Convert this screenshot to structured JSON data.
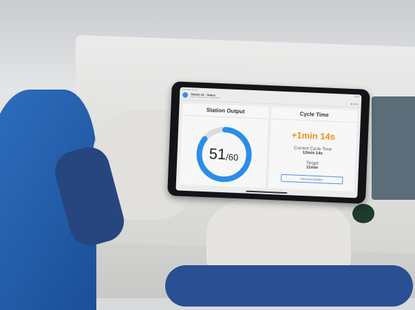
{
  "status_bar": {
    "time": "9:41 Mon Jun 10",
    "battery": "100%"
  },
  "header": {
    "title": "Station 12 – Status",
    "subtitle": "Here's a short overview of your station.",
    "status": "Active"
  },
  "station_output": {
    "title": "Station Output",
    "current": "51",
    "total": "/60",
    "progress": 0.85,
    "color": "#2b8de8"
  },
  "cycle_time": {
    "title": "Cycle Time",
    "delta": "+1min 14s",
    "delta_color": "#f0900c",
    "current_label": "Current Cycle Time",
    "current_value": "12min 14s",
    "target_label": "Target",
    "target_value": "11min",
    "button": "View best practice"
  }
}
